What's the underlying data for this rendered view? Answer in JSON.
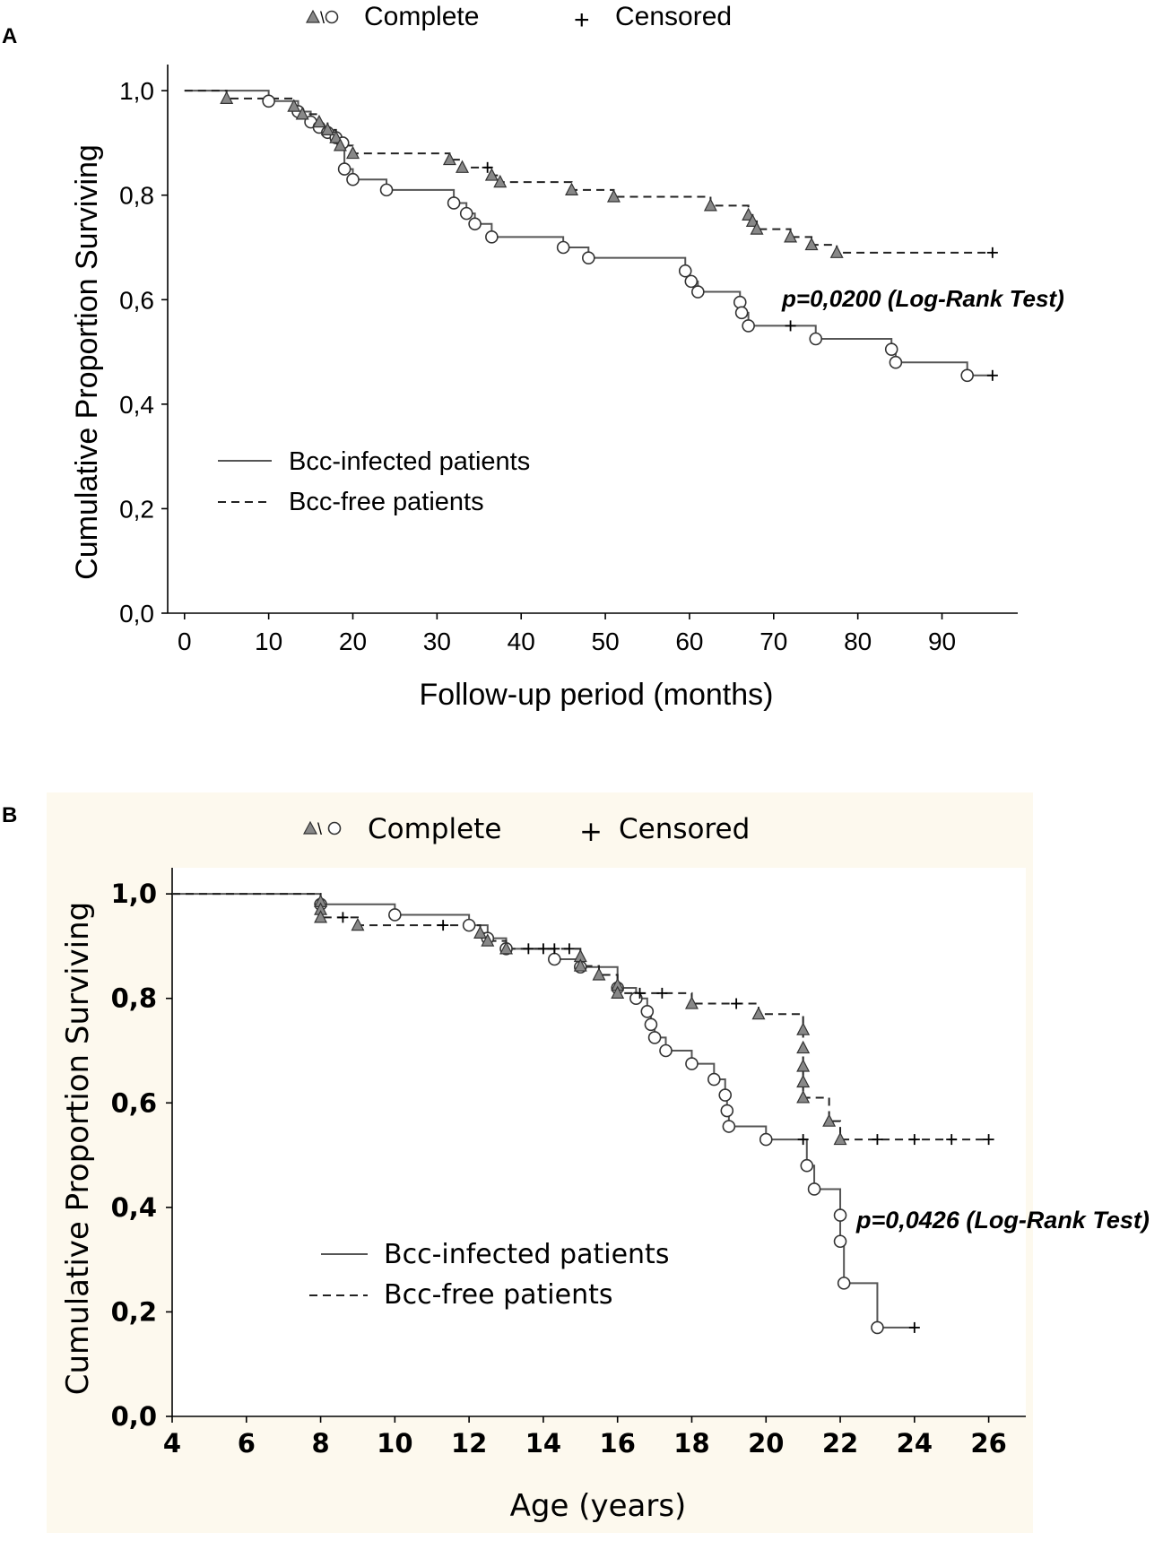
{
  "figure": {
    "legend_marker_text": "△\\○",
    "colors": {
      "solid_line": "#555555",
      "dashed_line": "#222222",
      "triangle_fill": "#888888",
      "panel_b_background": "#fdf9ee"
    }
  },
  "chart_data": [
    {
      "type": "line",
      "panel_label": "A",
      "title": "",
      "top_legend": {
        "complete_label": "Complete",
        "censored_label": "Censored",
        "censored_symbol": "+"
      },
      "xlabel": "Follow-up period (months)",
      "ylabel": "Cumulative Proportion Surviving",
      "xlim": [
        -2,
        99
      ],
      "ylim": [
        0,
        1.05
      ],
      "x_ticks": [
        0,
        10,
        20,
        30,
        40,
        50,
        60,
        70,
        80,
        90
      ],
      "y_ticks": [
        "0,0",
        "0,2",
        "0,4",
        "0,6",
        "0,8",
        "1,0"
      ],
      "y_tick_values": [
        0,
        0.2,
        0.4,
        0.6,
        0.8,
        1.0
      ],
      "annotation": "p=0,0200 (Log-Rank Test)",
      "legend_position": "lower-left",
      "series": [
        {
          "name": "Bcc-infected patients",
          "line_style": "solid",
          "steps": [
            [
              0,
              1.0
            ],
            [
              10,
              0.98
            ],
            [
              13.5,
              0.96
            ],
            [
              15,
              0.94
            ],
            [
              16,
              0.93
            ],
            [
              17,
              0.92
            ],
            [
              18,
              0.91
            ],
            [
              19,
              0.85
            ],
            [
              20,
              0.83
            ],
            [
              24,
              0.81
            ],
            [
              32,
              0.785
            ],
            [
              33.5,
              0.765
            ],
            [
              34.5,
              0.745
            ],
            [
              36.5,
              0.72
            ],
            [
              45,
              0.7
            ],
            [
              48,
              0.68
            ],
            [
              59.5,
              0.655
            ],
            [
              60,
              0.635
            ],
            [
              61,
              0.615
            ],
            [
              66,
              0.595
            ],
            [
              66.2,
              0.575
            ],
            [
              67,
              0.55
            ],
            [
              75,
              0.525
            ],
            [
              84,
              0.505
            ],
            [
              84.5,
              0.48
            ],
            [
              93,
              0.455
            ],
            [
              96,
              0.455
            ]
          ],
          "complete_events": [
            [
              10,
              0.98
            ],
            [
              13.5,
              0.96
            ],
            [
              15,
              0.94
            ],
            [
              16,
              0.93
            ],
            [
              17,
              0.92
            ],
            [
              18,
              0.91
            ],
            [
              18.8,
              0.9
            ],
            [
              19,
              0.85
            ],
            [
              20,
              0.83
            ],
            [
              24,
              0.81
            ],
            [
              32,
              0.785
            ],
            [
              33.5,
              0.765
            ],
            [
              34.5,
              0.745
            ],
            [
              36.5,
              0.72
            ],
            [
              45,
              0.7
            ],
            [
              48,
              0.68
            ],
            [
              59.5,
              0.655
            ],
            [
              60.2,
              0.635
            ],
            [
              61,
              0.615
            ],
            [
              66,
              0.595
            ],
            [
              66.2,
              0.575
            ],
            [
              67,
              0.55
            ],
            [
              75,
              0.525
            ],
            [
              84,
              0.505
            ],
            [
              84.5,
              0.48
            ],
            [
              93,
              0.455
            ]
          ],
          "censored_events": [
            [
              72,
              0.55
            ],
            [
              96,
              0.455
            ]
          ]
        },
        {
          "name": "Bcc-free patients",
          "line_style": "dashed",
          "steps": [
            [
              0,
              1.0
            ],
            [
              5,
              0.985
            ],
            [
              13,
              0.97
            ],
            [
              14,
              0.955
            ],
            [
              16,
              0.94
            ],
            [
              17,
              0.925
            ],
            [
              18,
              0.91
            ],
            [
              18.5,
              0.895
            ],
            [
              20,
              0.88
            ],
            [
              31.5,
              0.868
            ],
            [
              33,
              0.853
            ],
            [
              36.5,
              0.838
            ],
            [
              37.5,
              0.825
            ],
            [
              46,
              0.81
            ],
            [
              51,
              0.797
            ],
            [
              62.5,
              0.78
            ],
            [
              67,
              0.762
            ],
            [
              67.5,
              0.75
            ],
            [
              68,
              0.735
            ],
            [
              72,
              0.72
            ],
            [
              74.5,
              0.705
            ],
            [
              77.5,
              0.69
            ],
            [
              96,
              0.69
            ]
          ],
          "complete_events": [
            [
              5,
              0.985
            ],
            [
              13,
              0.97
            ],
            [
              14,
              0.955
            ],
            [
              16,
              0.94
            ],
            [
              17,
              0.925
            ],
            [
              18,
              0.91
            ],
            [
              18.5,
              0.895
            ],
            [
              20,
              0.88
            ],
            [
              31.5,
              0.868
            ],
            [
              33,
              0.853
            ],
            [
              36.5,
              0.838
            ],
            [
              37.5,
              0.825
            ],
            [
              46,
              0.81
            ],
            [
              51,
              0.797
            ],
            [
              62.5,
              0.78
            ],
            [
              67,
              0.762
            ],
            [
              67.5,
              0.75
            ],
            [
              68,
              0.735
            ],
            [
              72,
              0.72
            ],
            [
              74.5,
              0.705
            ],
            [
              77.5,
              0.69
            ]
          ],
          "censored_events": [
            [
              36,
              0.853
            ],
            [
              96,
              0.69
            ]
          ]
        }
      ]
    },
    {
      "type": "line",
      "panel_label": "B",
      "title": "",
      "top_legend": {
        "complete_label": "Complete",
        "censored_label": "Censored",
        "censored_symbol": "+"
      },
      "xlabel": "Age (years)",
      "ylabel": "Cumulative Proportion Surviving",
      "xlim": [
        4,
        27
      ],
      "ylim": [
        0,
        1.05
      ],
      "x_ticks": [
        4,
        6,
        8,
        10,
        12,
        14,
        16,
        18,
        20,
        22,
        24,
        26
      ],
      "y_ticks": [
        "0,0",
        "0,2",
        "0,4",
        "0,6",
        "0,8",
        "1,0"
      ],
      "y_tick_values": [
        0,
        0.2,
        0.4,
        0.6,
        0.8,
        1.0
      ],
      "annotation": "p=0,0426 (Log-Rank Test)",
      "legend_position": "lower-left",
      "series": [
        {
          "name": "Bcc-infected patients",
          "line_style": "solid",
          "steps": [
            [
              4,
              1.0
            ],
            [
              8,
              0.98
            ],
            [
              10,
              0.96
            ],
            [
              12,
              0.94
            ],
            [
              12.5,
              0.915
            ],
            [
              13,
              0.895
            ],
            [
              14.3,
              0.875
            ],
            [
              15,
              0.86
            ],
            [
              16,
              0.82
            ],
            [
              16.5,
              0.8
            ],
            [
              16.8,
              0.775
            ],
            [
              16.9,
              0.75
            ],
            [
              17,
              0.725
            ],
            [
              17.3,
              0.7
            ],
            [
              18,
              0.675
            ],
            [
              18.6,
              0.645
            ],
            [
              18.9,
              0.615
            ],
            [
              18.95,
              0.585
            ],
            [
              19,
              0.555
            ],
            [
              20,
              0.53
            ],
            [
              21.1,
              0.48
            ],
            [
              21.3,
              0.435
            ],
            [
              22,
              0.385
            ],
            [
              22,
              0.335
            ],
            [
              22.1,
              0.255
            ],
            [
              23,
              0.17
            ],
            [
              24,
              0.17
            ]
          ],
          "complete_events": [
            [
              8,
              0.98
            ],
            [
              10,
              0.96
            ],
            [
              12,
              0.94
            ],
            [
              12.5,
              0.915
            ],
            [
              13,
              0.895
            ],
            [
              14.3,
              0.875
            ],
            [
              15,
              0.86
            ],
            [
              16,
              0.82
            ],
            [
              16.5,
              0.8
            ],
            [
              16.8,
              0.775
            ],
            [
              16.9,
              0.75
            ],
            [
              17,
              0.725
            ],
            [
              17.3,
              0.7
            ],
            [
              18,
              0.675
            ],
            [
              18.6,
              0.645
            ],
            [
              18.9,
              0.615
            ],
            [
              18.95,
              0.585
            ],
            [
              19,
              0.555
            ],
            [
              20,
              0.53
            ],
            [
              21.1,
              0.48
            ],
            [
              21.3,
              0.435
            ],
            [
              22,
              0.385
            ],
            [
              22,
              0.335
            ],
            [
              22.1,
              0.255
            ],
            [
              23,
              0.17
            ]
          ],
          "censored_events": [
            [
              21,
              0.53
            ],
            [
              24,
              0.17
            ]
          ]
        },
        {
          "name": "Bcc-free patients",
          "line_style": "dashed",
          "steps": [
            [
              4,
              1.0
            ],
            [
              8,
              0.985
            ],
            [
              8,
              0.97
            ],
            [
              8,
              0.955
            ],
            [
              9,
              0.94
            ],
            [
              12,
              0.94
            ],
            [
              12.3,
              0.925
            ],
            [
              12.5,
              0.91
            ],
            [
              13,
              0.895
            ],
            [
              15,
              0.88
            ],
            [
              15,
              0.862
            ],
            [
              15.5,
              0.845
            ],
            [
              16,
              0.825
            ],
            [
              16,
              0.81
            ],
            [
              18,
              0.79
            ],
            [
              19.8,
              0.77
            ],
            [
              21,
              0.74
            ],
            [
              21,
              0.705
            ],
            [
              21,
              0.67
            ],
            [
              21,
              0.64
            ],
            [
              21,
              0.61
            ],
            [
              21.7,
              0.565
            ],
            [
              22,
              0.53
            ],
            [
              26,
              0.53
            ]
          ],
          "complete_events": [
            [
              8,
              0.985
            ],
            [
              8,
              0.97
            ],
            [
              8,
              0.955
            ],
            [
              9,
              0.94
            ],
            [
              12.3,
              0.925
            ],
            [
              12.5,
              0.91
            ],
            [
              13,
              0.895
            ],
            [
              15,
              0.88
            ],
            [
              15,
              0.862
            ],
            [
              15.5,
              0.845
            ],
            [
              16,
              0.825
            ],
            [
              16,
              0.81
            ],
            [
              18,
              0.79
            ],
            [
              19.8,
              0.77
            ],
            [
              21,
              0.74
            ],
            [
              21,
              0.705
            ],
            [
              21,
              0.67
            ],
            [
              21,
              0.64
            ],
            [
              21,
              0.61
            ],
            [
              21.7,
              0.565
            ],
            [
              22,
              0.53
            ]
          ],
          "censored_events": [
            [
              8.6,
              0.955
            ],
            [
              11.3,
              0.94
            ],
            [
              13.6,
              0.895
            ],
            [
              14,
              0.895
            ],
            [
              14.3,
              0.895
            ],
            [
              14.7,
              0.895
            ],
            [
              16.6,
              0.81
            ],
            [
              17.2,
              0.81
            ],
            [
              19.2,
              0.79
            ],
            [
              23,
              0.53
            ],
            [
              24,
              0.53
            ],
            [
              25,
              0.53
            ],
            [
              26,
              0.53
            ]
          ]
        }
      ]
    }
  ]
}
